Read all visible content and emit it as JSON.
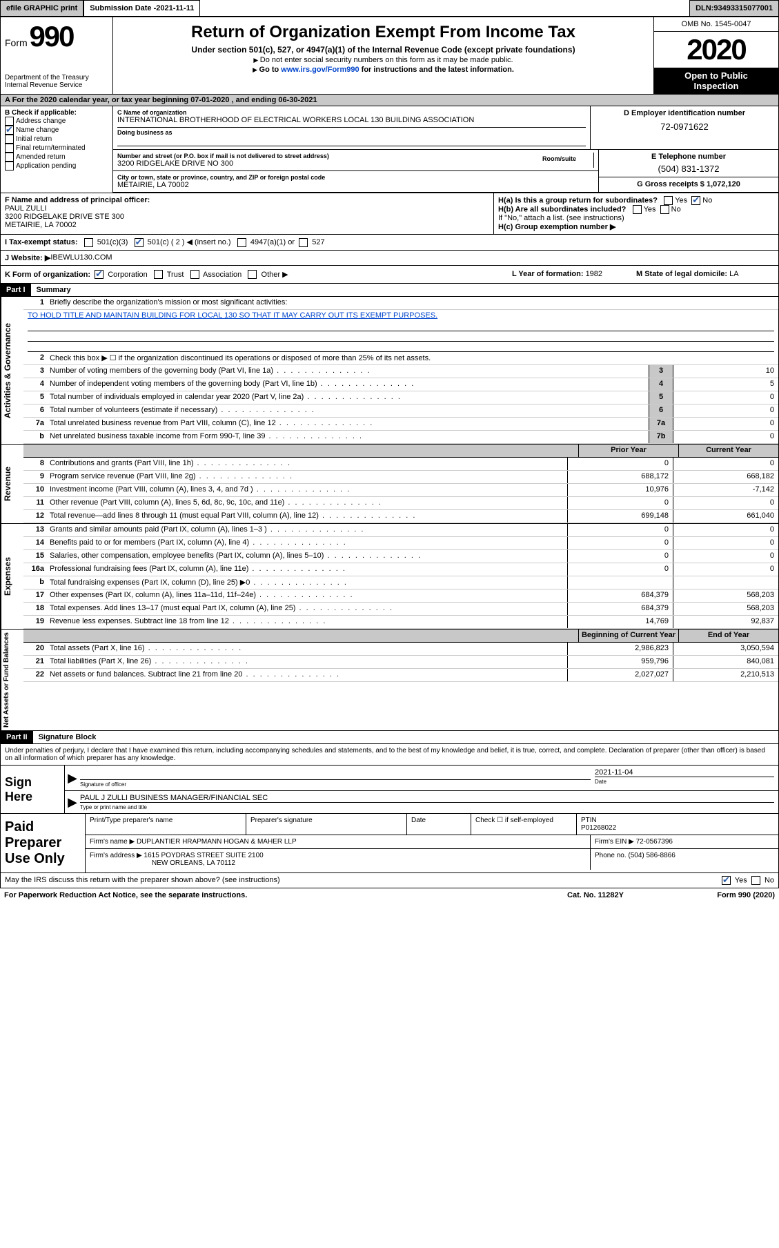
{
  "topbar": {
    "efile_label": "efile GRAPHIC print",
    "submission_label": "Submission Date - ",
    "submission_date": "2021-11-11",
    "dln_label": "DLN: ",
    "dln": "93493315077001"
  },
  "header": {
    "form_label": "Form",
    "form_number": "990",
    "dept": "Department of the Treasury",
    "irs": "Internal Revenue Service",
    "title": "Return of Organization Exempt From Income Tax",
    "subtitle": "Under section 501(c), 527, or 4947(a)(1) of the Internal Revenue Code (except private foundations)",
    "note1": "Do not enter social security numbers on this form as it may be made public.",
    "note2_pre": "Go to ",
    "note2_link": "www.irs.gov/Form990",
    "note2_post": " for instructions and the latest information.",
    "omb": "OMB No. 1545-0047",
    "year": "2020",
    "inspection1": "Open to Public",
    "inspection2": "Inspection"
  },
  "row_a": {
    "text": "A For the 2020 calendar year, or tax year beginning 07-01-2020   , and ending 06-30-2021"
  },
  "section_b": {
    "label": "B Check if applicable:",
    "items": [
      {
        "label": "Address change",
        "checked": false
      },
      {
        "label": "Name change",
        "checked": true
      },
      {
        "label": "Initial return",
        "checked": false
      },
      {
        "label": "Final return/terminated",
        "checked": false
      },
      {
        "label": "Amended return",
        "checked": false
      },
      {
        "label": "Application pending",
        "checked": false
      }
    ]
  },
  "section_c": {
    "name_label": "C Name of organization",
    "name": "INTERNATIONAL BROTHERHOOD OF ELECTRICAL WORKERS LOCAL 130 BUILDING ASSOCIATION",
    "dba_label": "Doing business as",
    "dba": "",
    "addr_label": "Number and street (or P.O. box if mail is not delivered to street address)",
    "addr": "3200 RIDGELAKE DRIVE NO 300",
    "room_label": "Room/suite",
    "city_label": "City or town, state or province, country, and ZIP or foreign postal code",
    "city": "METAIRIE, LA  70002"
  },
  "section_d": {
    "label": "D Employer identification number",
    "value": "72-0971622"
  },
  "section_e": {
    "label": "E Telephone number",
    "value": "(504) 831-1372"
  },
  "section_g": {
    "label": "G Gross receipts $ ",
    "value": "1,072,120"
  },
  "section_f": {
    "label": "F  Name and address of principal officer:",
    "name": "PAUL ZULLI",
    "addr1": "3200 RIDGELAKE DRIVE STE 300",
    "addr2": "METAIRIE, LA  70002"
  },
  "section_h": {
    "ha_label": "H(a)  Is this a group return for subordinates?",
    "ha_yes": "Yes",
    "ha_no": "No",
    "hb_label": "H(b)  Are all subordinates included?",
    "hb_yes": "Yes",
    "hb_no": "No",
    "hb_note": "If \"No,\" attach a list. (see instructions)",
    "hc_label": "H(c)  Group exemption number ▶"
  },
  "section_i": {
    "label": "I  Tax-exempt status:",
    "opt1": "501(c)(3)",
    "opt2": "501(c) ( 2 ) ◀ (insert no.)",
    "opt3": "4947(a)(1) or",
    "opt4": "527"
  },
  "section_j": {
    "label": "J  Website: ▶",
    "value": " IBEWLU130.COM"
  },
  "section_k": {
    "label": "K Form of organization:",
    "opt1": "Corporation",
    "opt2": "Trust",
    "opt3": "Association",
    "opt4": "Other ▶",
    "l_label": "L Year of formation: ",
    "l_value": "1982",
    "m_label": "M State of legal domicile: ",
    "m_value": "LA"
  },
  "part1": {
    "part_label": "Part I",
    "title": "Summary",
    "side_gov": "Activities & Governance",
    "side_rev": "Revenue",
    "side_exp": "Expenses",
    "side_net": "Net Assets or Fund Balances",
    "line1_label": "Briefly describe the organization's mission or most significant activities:",
    "line1_text": "TO HOLD TITLE AND MAINTAIN BUILDING FOR LOCAL 130 SO THAT IT MAY CARRY OUT ITS EXEMPT PURPOSES.",
    "line2": "Check this box ▶ ☐  if the organization discontinued its operations or disposed of more than 25% of its net assets.",
    "lines_gov": [
      {
        "num": "3",
        "desc": "Number of voting members of the governing body (Part VI, line 1a)",
        "box": "3",
        "val": "10"
      },
      {
        "num": "4",
        "desc": "Number of independent voting members of the governing body (Part VI, line 1b)",
        "box": "4",
        "val": "5"
      },
      {
        "num": "5",
        "desc": "Total number of individuals employed in calendar year 2020 (Part V, line 2a)",
        "box": "5",
        "val": "0"
      },
      {
        "num": "6",
        "desc": "Total number of volunteers (estimate if necessary)",
        "box": "6",
        "val": "0"
      },
      {
        "num": "7a",
        "desc": "Total unrelated business revenue from Part VIII, column (C), line 12",
        "box": "7a",
        "val": "0"
      },
      {
        "num": "b",
        "desc": "Net unrelated business taxable income from Form 990-T, line 39",
        "box": "7b",
        "val": "0"
      }
    ],
    "col_headers": {
      "prior": "Prior Year",
      "current": "Current Year"
    },
    "lines_rev": [
      {
        "num": "8",
        "desc": "Contributions and grants (Part VIII, line 1h)",
        "p": "0",
        "c": "0"
      },
      {
        "num": "9",
        "desc": "Program service revenue (Part VIII, line 2g)",
        "p": "688,172",
        "c": "668,182"
      },
      {
        "num": "10",
        "desc": "Investment income (Part VIII, column (A), lines 3, 4, and 7d )",
        "p": "10,976",
        "c": "-7,142"
      },
      {
        "num": "11",
        "desc": "Other revenue (Part VIII, column (A), lines 5, 6d, 8c, 9c, 10c, and 11e)",
        "p": "0",
        "c": "0"
      },
      {
        "num": "12",
        "desc": "Total revenue—add lines 8 through 11 (must equal Part VIII, column (A), line 12)",
        "p": "699,148",
        "c": "661,040"
      }
    ],
    "lines_exp": [
      {
        "num": "13",
        "desc": "Grants and similar amounts paid (Part IX, column (A), lines 1–3 )",
        "p": "0",
        "c": "0"
      },
      {
        "num": "14",
        "desc": "Benefits paid to or for members (Part IX, column (A), line 4)",
        "p": "0",
        "c": "0"
      },
      {
        "num": "15",
        "desc": "Salaries, other compensation, employee benefits (Part IX, column (A), lines 5–10)",
        "p": "0",
        "c": "0"
      },
      {
        "num": "16a",
        "desc": "Professional fundraising fees (Part IX, column (A), line 11e)",
        "p": "0",
        "c": "0"
      },
      {
        "num": "b",
        "desc": "Total fundraising expenses (Part IX, column (D), line 25) ▶0",
        "p": "",
        "c": ""
      },
      {
        "num": "17",
        "desc": "Other expenses (Part IX, column (A), lines 11a–11d, 11f–24e)",
        "p": "684,379",
        "c": "568,203"
      },
      {
        "num": "18",
        "desc": "Total expenses. Add lines 13–17 (must equal Part IX, column (A), line 25)",
        "p": "684,379",
        "c": "568,203"
      },
      {
        "num": "19",
        "desc": "Revenue less expenses. Subtract line 18 from line 12",
        "p": "14,769",
        "c": "92,837"
      }
    ],
    "col_headers2": {
      "begin": "Beginning of Current Year",
      "end": "End of Year"
    },
    "lines_net": [
      {
        "num": "20",
        "desc": "Total assets (Part X, line 16)",
        "p": "2,986,823",
        "c": "3,050,594"
      },
      {
        "num": "21",
        "desc": "Total liabilities (Part X, line 26)",
        "p": "959,796",
        "c": "840,081"
      },
      {
        "num": "22",
        "desc": "Net assets or fund balances. Subtract line 21 from line 20",
        "p": "2,027,027",
        "c": "2,210,513"
      }
    ]
  },
  "part2": {
    "part_label": "Part II",
    "title": "Signature Block",
    "penalty": "Under penalties of perjury, I declare that I have examined this return, including accompanying schedules and statements, and to the best of my knowledge and belief, it is true, correct, and complete. Declaration of preparer (other than officer) is based on all information of which preparer has any knowledge."
  },
  "sign": {
    "label": "Sign Here",
    "sig_label": "Signature of officer",
    "date_label": "Date",
    "date": "2021-11-04",
    "name": "PAUL J ZULLI BUSINESS MANAGER/FINANCIAL SEC",
    "name_label": "Type or print name and title"
  },
  "preparer": {
    "label": "Paid Preparer Use Only",
    "h1": "Print/Type preparer's name",
    "h2": "Preparer's signature",
    "h3": "Date",
    "h4_pre": "Check ☐ if self-employed",
    "h5_label": "PTIN",
    "h5": "P01268022",
    "firm_label": "Firm's name    ▶ ",
    "firm": "DUPLANTIER HRAPMANN HOGAN & MAHER LLP",
    "ein_label": "Firm's EIN ▶ ",
    "ein": "72-0567396",
    "addr_label": "Firm's address ▶ ",
    "addr1": "1615 POYDRAS STREET SUITE 2100",
    "addr2": "NEW ORLEANS, LA  70112",
    "phone_label": "Phone no. ",
    "phone": "(504) 586-8866"
  },
  "footer": {
    "discuss": "May the IRS discuss this return with the preparer shown above? (see instructions)",
    "yes": "Yes",
    "no": "No",
    "pra": "For Paperwork Reduction Act Notice, see the separate instructions.",
    "cat": "Cat. No. 11282Y",
    "form": "Form 990 (2020)"
  },
  "colors": {
    "gray": "#c8c8c8",
    "link": "#0044cc",
    "check": "#2a5cab"
  }
}
